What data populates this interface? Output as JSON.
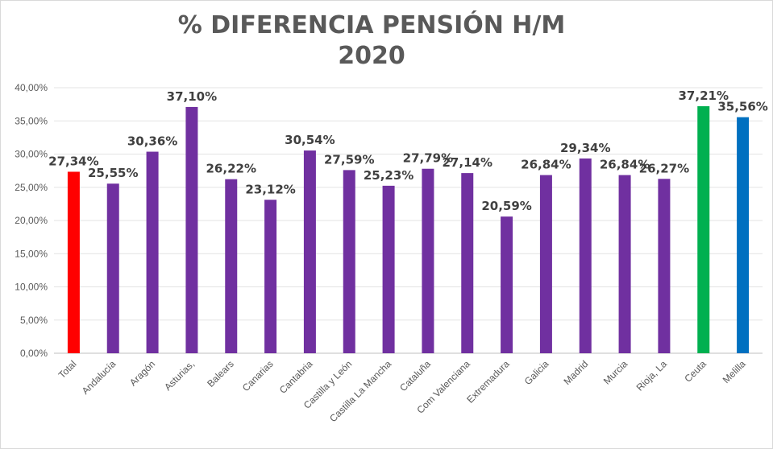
{
  "chart": {
    "title_line1": "% DIFERENCIA PENSIÓN H/M",
    "title_line2": "2020"
  },
  "chart_data": {
    "type": "bar",
    "title": "% DIFERENCIA PENSIÓN H/M 2020",
    "xlabel": "",
    "ylabel": "",
    "ylim": [
      0,
      40
    ],
    "yticks": [
      "0,00%",
      "5,00%",
      "10,00%",
      "15,00%",
      "20,00%",
      "25,00%",
      "30,00%",
      "35,00%",
      "40,00%"
    ],
    "grid": true,
    "categories": [
      "Total",
      "Andalucía",
      "Aragón",
      "Asturias,",
      "Balears",
      "Canarias",
      "Cantabria",
      "Castilla y León",
      "Castilla La Mancha",
      "Cataluña",
      "Com Valenciana",
      "Extremadura",
      "Galicia",
      "Madrid",
      "Murcia",
      "Rioja, La",
      "Ceuta",
      "Melilla"
    ],
    "values": [
      27.34,
      25.55,
      30.36,
      37.1,
      26.22,
      23.12,
      30.54,
      27.59,
      25.23,
      27.79,
      27.14,
      20.59,
      26.84,
      29.34,
      26.84,
      26.27,
      37.21,
      35.56
    ],
    "labels": [
      "27,34%",
      "25,55%",
      "30,36%",
      "37,10%",
      "26,22%",
      "23,12%",
      "30,54%",
      "27,59%",
      "25,23%",
      "27,79%",
      "27,14%",
      "20,59%",
      "26,84%",
      "29,34%",
      "26,84%",
      "26,27%",
      "37,21%",
      "35,56%"
    ],
    "colors": [
      "#ff0000",
      "#7030a0",
      "#7030a0",
      "#7030a0",
      "#7030a0",
      "#7030a0",
      "#7030a0",
      "#7030a0",
      "#7030a0",
      "#7030a0",
      "#7030a0",
      "#7030a0",
      "#7030a0",
      "#7030a0",
      "#7030a0",
      "#7030a0",
      "#00b050",
      "#0070c0"
    ]
  }
}
